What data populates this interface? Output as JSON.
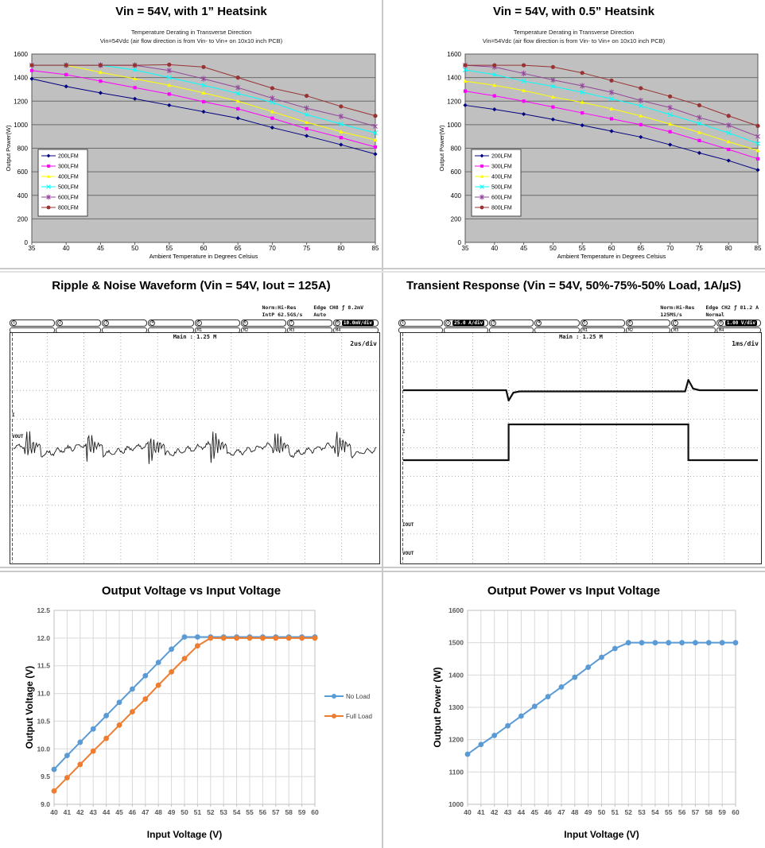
{
  "page": {
    "background": "#ffffff",
    "divider_color": "#c9c9c9"
  },
  "panels": {
    "derating_1in": {
      "title": "Vin = 54V, with 1” Heatsink",
      "subtitle1": "Temperature Derating in Transverse Direction",
      "subtitle2": "Vin=54Vdc (air flow direction is from Vin- to Vin+ on 10x10 inch PCB)"
    },
    "derating_05in": {
      "title": "Vin = 54V, with 0.5” Heatsink",
      "subtitle1": "Temperature Derating in Transverse Direction",
      "subtitle2": "Vin=54Vdc (air flow direction is from Vin- to Vin+ on 10x10 inch PCB)"
    },
    "ripple": {
      "title": "Ripple & Noise Waveform (Vin = 54V, Iout = 125A)",
      "scope": {
        "acq_mode": "Norm:Hi-Res",
        "sample_rate": "IntP 62.5GS/s",
        "trigger": "Edge CH8 ƒ 8.2mV",
        "trigger_mode": "Auto",
        "channels": [
          "1",
          "2",
          "3",
          "4",
          "5",
          "6",
          "7",
          "8"
        ],
        "math_labels": [
          "M1",
          "M2",
          "M3",
          "M4"
        ],
        "badges": [
          {
            "ch": 8,
            "text": "10.0mV/div"
          }
        ],
        "main": "Main : 1.25 M",
        "timebase": "2us/div",
        "trace_labels": {
          "i": "I",
          "vout": "VOUT"
        }
      }
    },
    "transient": {
      "title": "Transient Response (Vin = 54V, 50%-75%-50% Load, 1A/µS)",
      "scope": {
        "acq_mode": "Norm:Hi-Res",
        "sample_rate": "125MS/s",
        "trigger": "Edge CH2 ƒ 81.2 A",
        "trigger_mode": "Normal",
        "channels": [
          "1",
          "2",
          "3",
          "4",
          "5",
          "6",
          "7",
          "8"
        ],
        "math_labels": [
          "M1",
          "M2",
          "M3",
          "M4"
        ],
        "badges": [
          {
            "ch": 2,
            "text": "25.0 A/div"
          },
          {
            "ch": 8,
            "text": "1.00 V/div"
          }
        ],
        "main": "Main : 1.25 M",
        "timebase": "1ms/div",
        "trace_labels": {
          "i": "I",
          "iout": "IOUT",
          "vout": "VOUT"
        }
      }
    },
    "vout_vs_vin": {
      "title": "Output Voltage vs Input Voltage"
    },
    "pout_vs_vin": {
      "title": "Output Power vs Input Voltage"
    }
  },
  "chart_data": [
    {
      "type": "line",
      "title": "Vin = 54V, with 1” Heatsink",
      "x": [
        35,
        40,
        45,
        50,
        55,
        60,
        65,
        70,
        75,
        80,
        85
      ],
      "xlabel": "Ambient Temperature in Degrees Celsius",
      "ylabel": "Output Power(W)",
      "ylim": [
        0,
        1600
      ],
      "ytick": 200,
      "legend_position": "inside-left",
      "grid": "horizontal",
      "series": [
        {
          "name": "200LFM",
          "color": "#000080",
          "marker": "diamond",
          "values": [
            1390,
            1325,
            1270,
            1220,
            1165,
            1110,
            1055,
            975,
            905,
            830,
            750
          ]
        },
        {
          "name": "300LFM",
          "color": "#FF00FF",
          "marker": "square",
          "values": [
            1460,
            1425,
            1370,
            1315,
            1260,
            1195,
            1135,
            1055,
            965,
            890,
            810
          ]
        },
        {
          "name": "400LFM",
          "color": "#FFFF00",
          "marker": "triangle",
          "values": [
            1505,
            1505,
            1445,
            1390,
            1335,
            1270,
            1200,
            1110,
            1020,
            940,
            870
          ]
        },
        {
          "name": "500LFM",
          "color": "#00FFFF",
          "marker": "x",
          "values": [
            1505,
            1505,
            1505,
            1465,
            1400,
            1335,
            1265,
            1190,
            1085,
            1005,
            930
          ]
        },
        {
          "name": "600LFM",
          "color": "#93469B",
          "marker": "asterisk",
          "values": [
            1505,
            1505,
            1505,
            1505,
            1460,
            1390,
            1315,
            1225,
            1140,
            1070,
            985
          ]
        },
        {
          "name": "800LFM",
          "color": "#993333",
          "marker": "circle",
          "values": [
            1505,
            1505,
            1505,
            1505,
            1510,
            1490,
            1400,
            1310,
            1245,
            1155,
            1075
          ]
        }
      ]
    },
    {
      "type": "line",
      "title": "Vin = 54V, with 0.5” Heatsink",
      "x": [
        35,
        40,
        45,
        50,
        55,
        60,
        65,
        70,
        75,
        80,
        85
      ],
      "xlabel": "Ambient Temperature in Degrees Celsius",
      "ylabel": "Output Power(W)",
      "ylim": [
        0,
        1600
      ],
      "ytick": 200,
      "legend_position": "inside-left",
      "grid": "horizontal",
      "series": [
        {
          "name": "200LFM",
          "color": "#000080",
          "marker": "diamond",
          "values": [
            1165,
            1130,
            1090,
            1045,
            995,
            945,
            895,
            830,
            760,
            695,
            615
          ]
        },
        {
          "name": "300LFM",
          "color": "#FF00FF",
          "marker": "square",
          "values": [
            1285,
            1245,
            1200,
            1150,
            1100,
            1050,
            1000,
            940,
            865,
            790,
            710
          ]
        },
        {
          "name": "400LFM",
          "color": "#FFFF00",
          "marker": "triangle",
          "values": [
            1370,
            1335,
            1290,
            1235,
            1190,
            1135,
            1075,
            1005,
            935,
            855,
            780
          ]
        },
        {
          "name": "500LFM",
          "color": "#00FFFF",
          "marker": "x",
          "values": [
            1465,
            1425,
            1370,
            1325,
            1275,
            1220,
            1160,
            1085,
            1010,
            930,
            840
          ]
        },
        {
          "name": "600LFM",
          "color": "#93469B",
          "marker": "asterisk",
          "values": [
            1505,
            1490,
            1435,
            1380,
            1330,
            1275,
            1205,
            1145,
            1060,
            995,
            900
          ]
        },
        {
          "name": "800LFM",
          "color": "#993333",
          "marker": "circle",
          "values": [
            1505,
            1505,
            1505,
            1490,
            1440,
            1375,
            1310,
            1240,
            1165,
            1075,
            990
          ]
        }
      ]
    },
    {
      "type": "line",
      "title": "Output Voltage vs Input Voltage",
      "x": [
        40,
        41,
        42,
        43,
        44,
        45,
        46,
        47,
        48,
        49,
        50,
        51,
        52,
        53,
        54,
        55,
        56,
        57,
        58,
        59,
        60
      ],
      "xlabel": "Input Voltage (V)",
      "ylabel": "Output Voltage (V)",
      "ylim": [
        9,
        12.5
      ],
      "ytick": 0.5,
      "ydecimals": 1,
      "legend_position": "right",
      "grid": "both",
      "series": [
        {
          "name": "No Load",
          "color": "#5B9BD5",
          "marker": "dot",
          "values": [
            9.63,
            9.88,
            10.12,
            10.36,
            10.6,
            10.84,
            11.08,
            11.32,
            11.56,
            11.8,
            12.02,
            12.02,
            12.02,
            12.02,
            12.02,
            12.02,
            12.02,
            12.02,
            12.02,
            12.02,
            12.02
          ]
        },
        {
          "name": "Full Load",
          "color": "#ED7D31",
          "marker": "dot",
          "values": [
            9.24,
            9.48,
            9.72,
            9.96,
            10.19,
            10.43,
            10.67,
            10.9,
            11.15,
            11.39,
            11.63,
            11.86,
            12.0,
            12.0,
            12.0,
            12.0,
            12.0,
            12.0,
            12.0,
            12.0,
            12.0
          ]
        }
      ]
    },
    {
      "type": "line",
      "title": "Output Power vs Input Voltage",
      "x": [
        40,
        41,
        42,
        43,
        44,
        45,
        46,
        47,
        48,
        49,
        50,
        51,
        52,
        53,
        54,
        55,
        56,
        57,
        58,
        59,
        60
      ],
      "xlabel": "Input Voltage (V)",
      "ylabel": "Output Power (W)",
      "ylim": [
        1000,
        1600
      ],
      "ytick": 100,
      "legend_position": "none",
      "grid": "both",
      "series": [
        {
          "name": "Output Power",
          "color": "#5B9BD5",
          "marker": "dot",
          "values": [
            1155,
            1185,
            1213,
            1243,
            1273,
            1303,
            1333,
            1363,
            1393,
            1424,
            1455,
            1482,
            1500,
            1500,
            1500,
            1500,
            1500,
            1500,
            1500,
            1500,
            1500
          ]
        }
      ]
    }
  ]
}
